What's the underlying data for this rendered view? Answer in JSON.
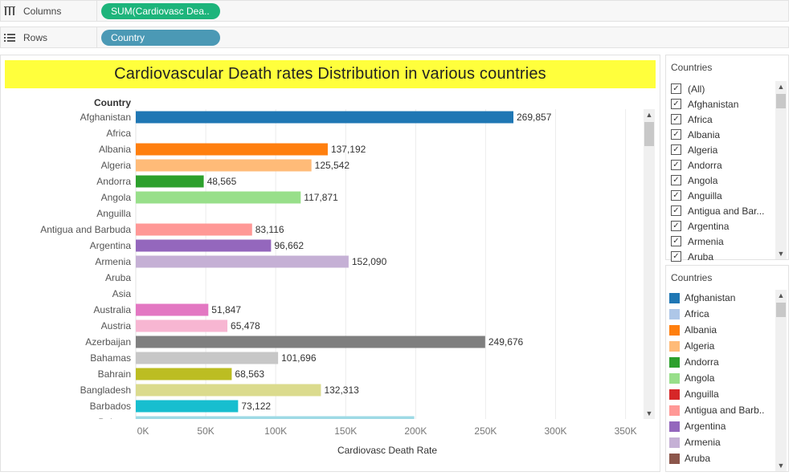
{
  "columns_shelf": {
    "label": "Columns",
    "pill": "SUM(Cardiovasc Dea.."
  },
  "rows_shelf": {
    "label": "Rows",
    "pill": "Country"
  },
  "chart_data": {
    "type": "bar",
    "orientation": "horizontal",
    "title": "Cardiovascular Death rates Distribution in various countries",
    "row_header": "Country",
    "xlabel": "Cardiovasc Death Rate",
    "xlim": [
      0,
      360000
    ],
    "x_ticks": [
      0,
      50000,
      100000,
      150000,
      200000,
      250000,
      300000,
      350000
    ],
    "x_tick_labels": [
      "0K",
      "50K",
      "100K",
      "150K",
      "200K",
      "250K",
      "300K",
      "350K"
    ],
    "grid": true,
    "categories": [
      "Afghanistan",
      "Africa",
      "Albania",
      "Algeria",
      "Andorra",
      "Angola",
      "Anguilla",
      "Antigua and Barbuda",
      "Argentina",
      "Armenia",
      "Aruba",
      "Asia",
      "Australia",
      "Austria",
      "Azerbaijan",
      "Bahamas",
      "Bahrain",
      "Bangladesh",
      "Barbados",
      "Belarus"
    ],
    "values": [
      269857,
      null,
      137192,
      125542,
      48565,
      117871,
      null,
      83116,
      96662,
      152090,
      null,
      null,
      51847,
      65478,
      249676,
      101696,
      68563,
      132313,
      73122,
      199000
    ],
    "value_labels": [
      "269,857",
      "",
      "137,192",
      "125,542",
      "48,565",
      "117,871",
      "",
      "83,116",
      "96,662",
      "152,090",
      "",
      "",
      "51,847",
      "65,478",
      "249,676",
      "101,696",
      "68,563",
      "132,313",
      "73,122",
      ""
    ],
    "colors": [
      "#1f77b4",
      "#aec7e8",
      "#ff7f0e",
      "#ffbb78",
      "#2ca02c",
      "#98df8a",
      "#d62728",
      "#ff9896",
      "#9467bd",
      "#c5b0d5",
      "#8c564b",
      "#c49c94",
      "#e377c2",
      "#f7b6d2",
      "#7f7f7f",
      "#c7c7c7",
      "#bcbd22",
      "#dbdb8d",
      "#17becf",
      "#9edae5"
    ]
  },
  "filter_card": {
    "title": "Countries",
    "items": [
      {
        "label": "(All)",
        "checked": true
      },
      {
        "label": "Afghanistan",
        "checked": true
      },
      {
        "label": "Africa",
        "checked": true
      },
      {
        "label": "Albania",
        "checked": true
      },
      {
        "label": "Algeria",
        "checked": true
      },
      {
        "label": "Andorra",
        "checked": true
      },
      {
        "label": "Angola",
        "checked": true
      },
      {
        "label": "Anguilla",
        "checked": true
      },
      {
        "label": "Antigua and Bar...",
        "checked": true
      },
      {
        "label": "Argentina",
        "checked": true
      },
      {
        "label": "Armenia",
        "checked": true
      },
      {
        "label": "Aruba",
        "checked": true
      }
    ],
    "check_glyph": "✓"
  },
  "legend_card": {
    "title": "Countries",
    "items": [
      {
        "label": "Afghanistan",
        "color": "#1f77b4"
      },
      {
        "label": "Africa",
        "color": "#aec7e8"
      },
      {
        "label": "Albania",
        "color": "#ff7f0e"
      },
      {
        "label": "Algeria",
        "color": "#ffbb78"
      },
      {
        "label": "Andorra",
        "color": "#2ca02c"
      },
      {
        "label": "Angola",
        "color": "#98df8a"
      },
      {
        "label": "Anguilla",
        "color": "#d62728"
      },
      {
        "label": "Antigua and Barb..",
        "color": "#ff9896"
      },
      {
        "label": "Argentina",
        "color": "#9467bd"
      },
      {
        "label": "Armenia",
        "color": "#c5b0d5"
      },
      {
        "label": "Aruba",
        "color": "#8c564b"
      }
    ]
  }
}
